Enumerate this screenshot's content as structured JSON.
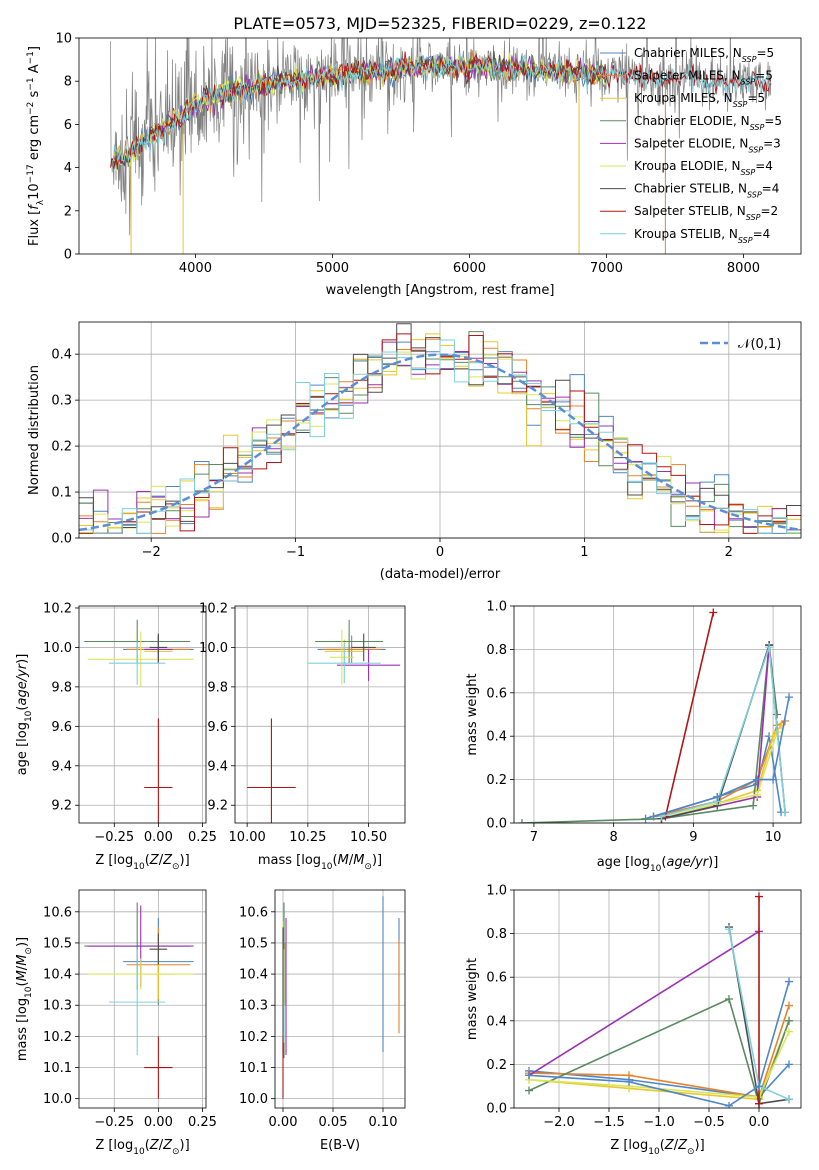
{
  "figure": {
    "title": "PLATE=0573, MJD=52325, FIBERID=0229, z=0.122"
  },
  "colors": [
    "#4f86c6",
    "#e5832b",
    "#e8c82c",
    "#5a8a60",
    "#9b30b5",
    "#d9e65a",
    "#4d4d4d",
    "#b01515",
    "#7fd0dc"
  ],
  "chart_data": [
    {
      "id": "spectrum",
      "type": "line",
      "xlabel": "wavelength [Angstrom, rest frame]",
      "ylabel": "Flux [f_λ 10^-17 erg cm^-2 s^-1 A^-1]",
      "xlim": [
        3150,
        8420
      ],
      "ylim": [
        0,
        10
      ],
      "xticks": [
        4000,
        5000,
        6000,
        7000,
        8000
      ],
      "yticks": [
        0,
        2,
        4,
        6,
        8,
        10
      ],
      "grid": false,
      "legend_position": "top-right",
      "data_color": "#7f7f7f",
      "continuum": {
        "x": [
          3400,
          3500,
          3600,
          3700,
          3800,
          3900,
          4000,
          4100,
          4200,
          4300,
          4400,
          4500,
          4600,
          4700,
          4800,
          4900,
          5000,
          5100,
          5200,
          5300,
          5400,
          5500,
          5600,
          5700,
          5800,
          5900,
          6000,
          6100,
          6200,
          6300,
          6400,
          6500,
          6600,
          6700,
          6800,
          6900,
          7000,
          7100,
          7200,
          7300,
          7400,
          7500,
          7600,
          7700,
          7800,
          7900,
          8000,
          8100,
          8200
        ],
        "y": [
          4.4,
          4.5,
          5.0,
          5.6,
          6.0,
          6.4,
          6.9,
          7.2,
          7.4,
          7.6,
          7.7,
          7.8,
          7.9,
          8.0,
          8.1,
          8.2,
          8.2,
          8.3,
          8.4,
          8.4,
          8.5,
          8.6,
          8.6,
          8.7,
          8.7,
          8.7,
          8.7,
          8.7,
          8.6,
          8.6,
          8.6,
          8.5,
          8.5,
          8.4,
          8.4,
          8.3,
          8.3,
          8.3,
          8.2,
          8.2,
          8.1,
          8.1,
          8.1,
          8.0,
          8.0,
          8.0,
          7.9,
          7.9,
          7.9
        ]
      },
      "legend": [
        {
          "label": "Chabrier MILES, N",
          "sub": "SSP",
          "suffix": "=5"
        },
        {
          "label": "Salpeter MILES, N",
          "sub": "SSP",
          "suffix": "=5"
        },
        {
          "label": "Kroupa MILES, N",
          "sub": "SSP",
          "suffix": "=5"
        },
        {
          "label": "Chabrier ELODIE, N",
          "sub": "SSP",
          "suffix": "=5"
        },
        {
          "label": "Salpeter ELODIE, N",
          "sub": "SSP",
          "suffix": "=3"
        },
        {
          "label": "Kroupa ELODIE, N",
          "sub": "SSP",
          "suffix": "=4"
        },
        {
          "label": "Chabrier STELIB, N",
          "sub": "SSP",
          "suffix": "=4"
        },
        {
          "label": "Salpeter STELIB, N",
          "sub": "SSP",
          "suffix": "=2"
        },
        {
          "label": "Kroupa STELIB, N",
          "sub": "SSP",
          "suffix": "=4"
        }
      ]
    },
    {
      "id": "residuals",
      "type": "histogram",
      "xlabel": "(data-model)/error",
      "ylabel": "Normed distribution",
      "xlim": [
        -2.5,
        2.5
      ],
      "ylim": [
        0,
        0.47
      ],
      "xticks": [
        -2,
        -1,
        0,
        1,
        2
      ],
      "yticks": [
        0.0,
        0.1,
        0.2,
        0.3,
        0.4
      ],
      "grid": true,
      "bin_width": 0.1,
      "legend": "𝒩(0,1)",
      "legend_position": "top-right",
      "normal_color": "#5a8fd6"
    },
    {
      "id": "age_vs_Z",
      "type": "errorbar",
      "xlabel": "Z [log10(Z/Z⊙)]",
      "ylabel": "age [log10(age/yr)]",
      "xlim": [
        -0.45,
        0.27
      ],
      "ylim": [
        9.11,
        10.21
      ],
      "xticks": [
        -0.25,
        0.0,
        0.25
      ],
      "yticks": [
        9.2,
        9.4,
        9.6,
        9.8,
        10.0,
        10.2
      ],
      "grid": true,
      "points": [
        {
          "x": 0.0,
          "xerr": 0.2,
          "y": 9.99,
          "yerr": 0.07
        },
        {
          "x": 0.0,
          "xerr": 0.18,
          "y": 9.99,
          "yerr": 0.07
        },
        {
          "x": 0.0,
          "xerr": 0.08,
          "y": 9.98,
          "yerr": 0.06
        },
        {
          "x": -0.12,
          "xerr": 0.3,
          "y": 10.03,
          "yerr": 0.11
        },
        {
          "x": 0.0,
          "xerr": 0.08,
          "y": 9.99,
          "yerr": 0.07
        },
        {
          "x": -0.1,
          "xerr": 0.3,
          "y": 9.94,
          "yerr": 0.14
        },
        {
          "x": 0.0,
          "xerr": 0.05,
          "y": 10.0,
          "yerr": 0.07
        },
        {
          "x": 0.0,
          "xerr": 0.08,
          "y": 9.29,
          "yerr": 0.35
        },
        {
          "x": -0.12,
          "xerr": 0.16,
          "y": 9.92,
          "yerr": 0.11
        }
      ]
    },
    {
      "id": "age_vs_mass",
      "type": "errorbar",
      "xlabel": "mass [log10(M/M⊙)]",
      "ylabel": "",
      "xlim": [
        9.95,
        10.65
      ],
      "ylim": [
        9.11,
        10.21
      ],
      "xticks": [
        10.0,
        10.25,
        10.5
      ],
      "yticks": [
        9.2,
        9.4,
        9.6,
        9.8,
        10.0,
        10.2
      ],
      "grid": true,
      "points": [
        {
          "x": 10.43,
          "xerr": 0.14,
          "y": 9.99,
          "yerr": 0.07
        },
        {
          "x": 10.43,
          "xerr": 0.12,
          "y": 9.99,
          "yerr": 0.07
        },
        {
          "x": 10.4,
          "xerr": 0.08,
          "y": 9.98,
          "yerr": 0.06
        },
        {
          "x": 10.42,
          "xerr": 0.14,
          "y": 10.03,
          "yerr": 0.11
        },
        {
          "x": 10.5,
          "xerr": 0.13,
          "y": 9.91,
          "yerr": 0.08
        },
        {
          "x": 10.39,
          "xerr": 0.05,
          "y": 9.95,
          "yerr": 0.14
        },
        {
          "x": 10.48,
          "xerr": 0.05,
          "y": 10.0,
          "yerr": 0.07
        },
        {
          "x": 10.1,
          "xerr": 0.1,
          "y": 9.29,
          "yerr": 0.35
        },
        {
          "x": 10.4,
          "xerr": 0.15,
          "y": 9.92,
          "yerr": 0.1
        }
      ]
    },
    {
      "id": "weight_vs_age",
      "type": "line",
      "xlabel": "age [log10(age/yr)]",
      "ylabel": "mass weight",
      "xlim": [
        6.75,
        10.35
      ],
      "ylim": [
        0,
        1
      ],
      "xticks": [
        7,
        8,
        9,
        10
      ],
      "yticks": [
        0.0,
        0.2,
        0.4,
        0.6,
        0.8,
        1.0
      ],
      "grid": true,
      "series": [
        {
          "x": [
            8.4,
            9.3,
            9.8,
            9.95,
            10.1
          ],
          "y": [
            0.02,
            0.12,
            0.18,
            0.4,
            0.05
          ]
        },
        {
          "x": [
            8.5,
            9.3,
            9.8,
            10.05,
            10.15
          ],
          "y": [
            0.03,
            0.1,
            0.2,
            0.45,
            0.47
          ]
        },
        {
          "x": [
            8.6,
            9.3,
            9.8,
            10.0,
            10.1
          ],
          "y": [
            0.02,
            0.09,
            0.15,
            0.4,
            0.45
          ]
        },
        {
          "x": [
            6.85,
            8.6,
            9.75,
            9.95,
            10.05
          ],
          "y": [
            0.0,
            0.02,
            0.08,
            0.82,
            0.5
          ]
        },
        {
          "x": [
            8.6,
            9.8,
            9.95
          ],
          "y": [
            0.02,
            0.12,
            0.82
          ]
        },
        {
          "x": [
            8.6,
            9.3,
            9.8,
            10.05
          ],
          "y": [
            0.02,
            0.09,
            0.13,
            0.42
          ]
        },
        {
          "x": [
            8.6,
            9.3,
            9.95,
            10.15
          ],
          "y": [
            0.02,
            0.08,
            0.82,
            0.05
          ]
        },
        {
          "x": [
            8.65,
            9.25
          ],
          "y": [
            0.03,
            0.97
          ]
        },
        {
          "x": [
            8.6,
            9.3,
            9.95,
            10.15
          ],
          "y": [
            0.03,
            0.1,
            0.81,
            0.05
          ]
        },
        {
          "x": [
            8.5,
            9.3,
            9.8,
            10.0,
            10.2
          ],
          "y": [
            0.03,
            0.12,
            0.2,
            0.2,
            0.58
          ]
        }
      ]
    },
    {
      "id": "mass_vs_Z",
      "type": "errorbar",
      "xlabel": "Z [log10(Z/Z⊙)]",
      "ylabel": "mass [log10(M/M⊙)]",
      "xlim": [
        -0.45,
        0.27
      ],
      "ylim": [
        9.97,
        10.67
      ],
      "xticks": [
        -0.25,
        0.0,
        0.25
      ],
      "yticks": [
        10.0,
        10.1,
        10.2,
        10.3,
        10.4,
        10.5,
        10.6
      ],
      "grid": true,
      "points": [
        {
          "x": 0.0,
          "xerr": 0.2,
          "y": 10.44,
          "yerr": 0.14
        },
        {
          "x": 0.0,
          "xerr": 0.18,
          "y": 10.43,
          "yerr": 0.12
        },
        {
          "x": 0.0,
          "xerr": 0.08,
          "y": 10.4,
          "yerr": 0.08
        },
        {
          "x": -0.12,
          "xerr": 0.3,
          "y": 10.49,
          "yerr": 0.14
        },
        {
          "x": -0.1,
          "xerr": 0.3,
          "y": 10.49,
          "yerr": 0.13
        },
        {
          "x": -0.1,
          "xerr": 0.3,
          "y": 10.4,
          "yerr": 0.05
        },
        {
          "x": 0.0,
          "xerr": 0.05,
          "y": 10.48,
          "yerr": 0.05
        },
        {
          "x": 0.0,
          "xerr": 0.08,
          "y": 10.1,
          "yerr": 0.1
        },
        {
          "x": -0.12,
          "xerr": 0.16,
          "y": 10.31,
          "yerr": 0.17
        }
      ]
    },
    {
      "id": "mass_vs_ebv",
      "type": "errorbar",
      "xlabel": "E(B-V)",
      "ylabel": "",
      "xlim": [
        -0.008,
        0.122
      ],
      "ylim": [
        9.97,
        10.67
      ],
      "xticks": [
        0.0,
        0.05,
        0.1
      ],
      "yticks": [
        10.0,
        10.1,
        10.2,
        10.3,
        10.4,
        10.5,
        10.6
      ],
      "grid": true,
      "points": [
        {
          "x": 0.116,
          "xerr": 0,
          "y": 10.44,
          "yerr": 0.14
        },
        {
          "x": 0.116,
          "xerr": 0,
          "y": 10.36,
          "yerr": 0.15
        },
        {
          "x": 0.002,
          "xerr": 0,
          "y": 10.4,
          "yerr": 0.1
        },
        {
          "x": 0.001,
          "xerr": 0,
          "y": 10.38,
          "yerr": 0.25
        },
        {
          "x": 0.003,
          "xerr": 0,
          "y": 10.36,
          "yerr": 0.22
        },
        {
          "x": 0.0,
          "xerr": 0,
          "y": 10.43,
          "yerr": 0.14
        },
        {
          "x": 0.0,
          "xerr": 0,
          "y": 10.35,
          "yerr": 0.2
        },
        {
          "x": 0.0,
          "xerr": 0,
          "y": 10.1,
          "yerr": 0.1
        },
        {
          "x": 0.001,
          "xerr": 0,
          "y": 10.33,
          "yerr": 0.15
        },
        {
          "x": 0.1,
          "xerr": 0,
          "y": 10.4,
          "yerr": 0.25
        }
      ]
    },
    {
      "id": "weight_vs_Z",
      "type": "line",
      "xlabel": "Z [log10(Z/Z⊙)]",
      "ylabel": "mass weight",
      "xlim": [
        -2.45,
        0.42
      ],
      "ylim": [
        0,
        1
      ],
      "xticks": [
        -2.0,
        -1.5,
        -1.0,
        -0.5,
        0.0
      ],
      "yticks": [
        0.0,
        0.2,
        0.4,
        0.6,
        0.8,
        1.0
      ],
      "grid": true,
      "series": [
        {
          "x": [
            -2.3,
            -1.3,
            0.0,
            0.3
          ],
          "y": [
            0.17,
            0.13,
            0.05,
            0.2
          ]
        },
        {
          "x": [
            -2.3,
            -1.3,
            0.0,
            0.3
          ],
          "y": [
            0.16,
            0.15,
            0.05,
            0.47
          ]
        },
        {
          "x": [
            -2.3,
            -1.3,
            0.0,
            0.3
          ],
          "y": [
            0.13,
            0.09,
            0.04,
            0.4
          ]
        },
        {
          "x": [
            -2.3,
            -0.3,
            0.0,
            0.3
          ],
          "y": [
            0.08,
            0.5,
            0.02,
            0.4
          ]
        },
        {
          "x": [
            -2.3,
            0.0
          ],
          "y": [
            0.15,
            0.81
          ]
        },
        {
          "x": [
            -2.3,
            -1.3,
            0.0,
            0.3
          ],
          "y": [
            0.13,
            0.1,
            0.05,
            0.35
          ]
        },
        {
          "x": [
            -0.3,
            0.0,
            0.3
          ],
          "y": [
            0.83,
            0.02,
            0.04
          ]
        },
        {
          "x": [
            0.0,
            0.0
          ],
          "y": [
            0.02,
            0.97
          ]
        },
        {
          "x": [
            -0.3,
            0.0,
            0.3
          ],
          "y": [
            0.82,
            0.1,
            0.04
          ]
        },
        {
          "x": [
            -2.3,
            -1.3,
            -0.3,
            0.0,
            0.3
          ],
          "y": [
            0.15,
            0.12,
            0.01,
            0.1,
            0.58
          ]
        }
      ]
    }
  ]
}
